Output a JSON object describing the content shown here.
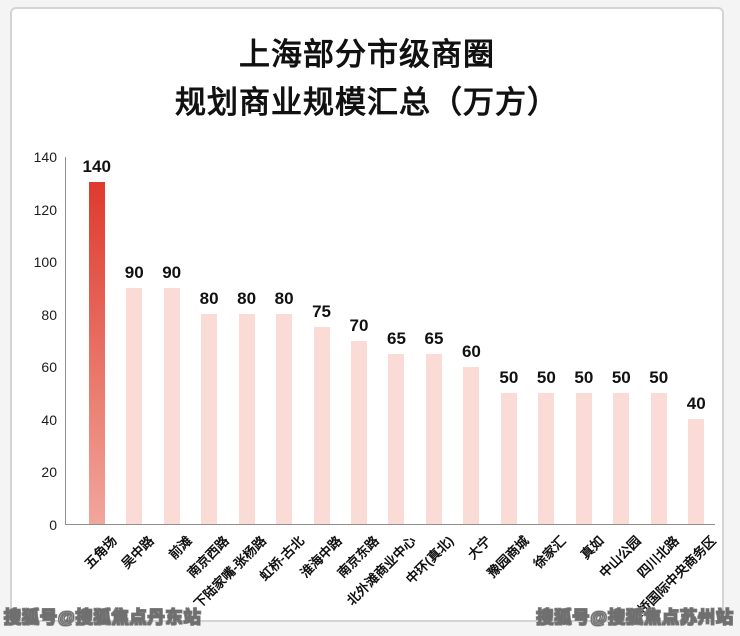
{
  "title": {
    "line1": "上海部分市级商圈",
    "line2": "规划商业规模汇总（万方）"
  },
  "chart_data": {
    "type": "bar",
    "title": "上海部分市级商圈规划商业规模汇总（万方）",
    "categories": [
      "五角场",
      "吴中路",
      "前滩",
      "南京西路",
      "下陆家嘴-张杨路",
      "虹桥-古北",
      "淮海中路",
      "南京东路",
      "北外滩商业中心",
      "中环(真北)",
      "大宁",
      "豫园商城",
      "徐家汇",
      "真如",
      "中山公园",
      "四川北路",
      "虹桥国际中央商务区"
    ],
    "values": [
      140,
      90,
      90,
      80,
      80,
      80,
      75,
      70,
      65,
      65,
      60,
      50,
      50,
      50,
      50,
      50,
      40
    ],
    "xlabel": "",
    "ylabel": "",
    "ylim": [
      0,
      140
    ],
    "yticks": [
      0,
      20,
      40,
      60,
      80,
      100,
      120,
      140
    ],
    "grid": false,
    "legend": null,
    "highlight_index": 0,
    "colors": {
      "bar_default": "#fadbd6",
      "bar_highlight_top": "#df3a2d",
      "bar_highlight_bottom": "#f2a69c",
      "axis": "#8f8f8f",
      "text": "#111111"
    }
  },
  "watermarks": {
    "left": "搜狐号@搜狐焦点丹东站",
    "right": "搜狐号@搜狐焦点苏州站"
  }
}
